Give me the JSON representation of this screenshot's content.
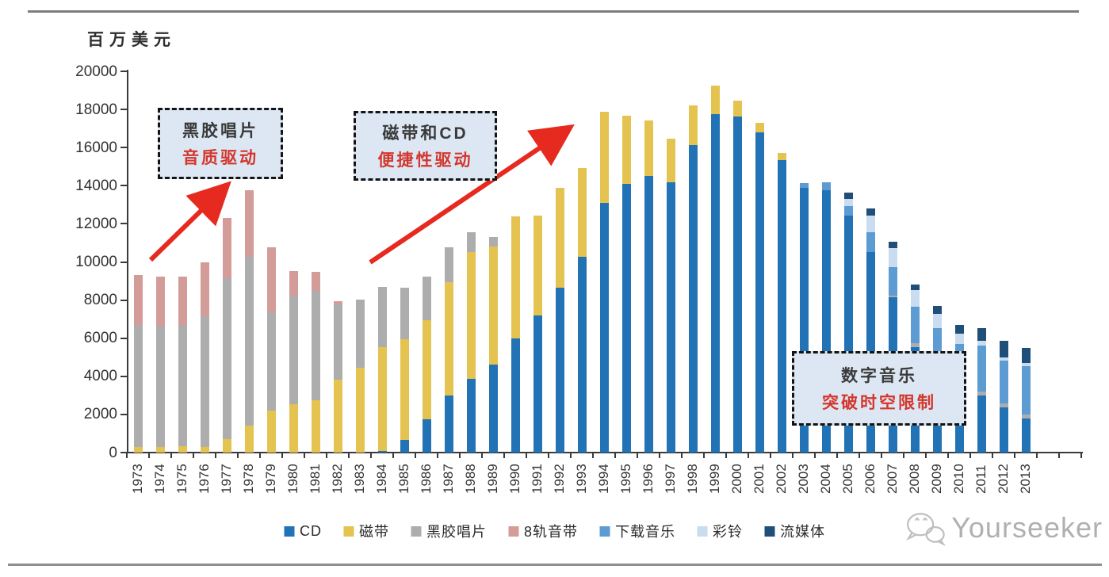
{
  "page": {
    "watermark_text": "Yourseeker"
  },
  "annotations": [
    {
      "title": "黑胶唱片",
      "subtitle": "音质驱动"
    },
    {
      "title": "磁带和CD",
      "subtitle": "便捷性驱动"
    },
    {
      "title": "数字音乐",
      "subtitle": "突破时空限制"
    }
  ],
  "chart_data": {
    "type": "bar",
    "stacked": true,
    "title": "",
    "unit_label": "百万美元",
    "xlabel": "",
    "ylabel": "百万美元",
    "ylim": [
      0,
      20000
    ],
    "ytick_labels": [
      "0",
      "2000",
      "4000",
      "6000",
      "8000",
      "10000",
      "12000",
      "14000",
      "16000",
      "18000",
      "20000"
    ],
    "grid": false,
    "legend_position": "bottom",
    "categories": [
      1973,
      1974,
      1975,
      1976,
      1977,
      1978,
      1979,
      1980,
      1981,
      1982,
      1983,
      1984,
      1985,
      1986,
      1987,
      1988,
      1989,
      1990,
      1991,
      1992,
      1993,
      1994,
      1995,
      1996,
      1997,
      1998,
      1999,
      2000,
      2001,
      2002,
      2003,
      2004,
      2005,
      2006,
      2007,
      2008,
      2009,
      2010,
      2011,
      2012,
      2013
    ],
    "series": [
      {
        "name": "CD",
        "color": "#2273b6",
        "values": [
          0,
          0,
          0,
          0,
          0,
          0,
          0,
          0,
          0,
          0,
          0,
          100,
          670,
          1750,
          3000,
          3880,
          4630,
          6000,
          7210,
          8630,
          10290,
          13080,
          14080,
          14500,
          14170,
          16130,
          17750,
          17630,
          16790,
          15340,
          13900,
          13750,
          12420,
          10540,
          8130,
          5540,
          4170,
          3390,
          3000,
          2380,
          1790
        ]
      },
      {
        "name": "磁带",
        "color": "#e4c351",
        "values": [
          300,
          300,
          320,
          290,
          710,
          1420,
          2210,
          2540,
          2750,
          3830,
          4460,
          5440,
          5290,
          5210,
          5920,
          6660,
          6200,
          6380,
          5210,
          5250,
          4630,
          4800,
          3590,
          2920,
          2290,
          2080,
          1500,
          830,
          500,
          370,
          0,
          0,
          0,
          0,
          0,
          0,
          0,
          0,
          0,
          0,
          0
        ]
      },
      {
        "name": "黑胶唱片",
        "color": "#adadad",
        "values": [
          6400,
          6370,
          6390,
          6880,
          8420,
          8870,
          5170,
          5710,
          5750,
          3960,
          3580,
          3170,
          2670,
          2250,
          1830,
          1000,
          460,
          0,
          0,
          0,
          0,
          0,
          0,
          0,
          0,
          0,
          0,
          0,
          0,
          0,
          0,
          0,
          0,
          0,
          120,
          210,
          180,
          170,
          210,
          200,
          210
        ]
      },
      {
        "name": "8轨音带",
        "color": "#d49c99",
        "values": [
          2630,
          2540,
          2500,
          2790,
          3160,
          3460,
          3410,
          1290,
          960,
          170,
          0,
          0,
          0,
          0,
          0,
          0,
          0,
          0,
          0,
          0,
          0,
          0,
          0,
          0,
          0,
          0,
          0,
          0,
          0,
          0,
          0,
          0,
          0,
          0,
          0,
          0,
          0,
          0,
          0,
          0,
          0
        ]
      },
      {
        "name": "下载音乐",
        "color": "#5d9bd3",
        "values": [
          0,
          0,
          0,
          0,
          0,
          0,
          0,
          0,
          0,
          0,
          0,
          0,
          0,
          0,
          0,
          0,
          0,
          0,
          0,
          0,
          0,
          0,
          0,
          0,
          0,
          0,
          0,
          0,
          0,
          0,
          230,
          420,
          500,
          1000,
          1460,
          1880,
          2190,
          2150,
          2420,
          2250,
          2540
        ]
      },
      {
        "name": "彩铃",
        "color": "#c9dcf0",
        "values": [
          0,
          0,
          0,
          0,
          0,
          0,
          0,
          0,
          0,
          0,
          0,
          0,
          0,
          0,
          0,
          0,
          0,
          0,
          0,
          0,
          0,
          0,
          0,
          0,
          0,
          0,
          0,
          0,
          0,
          0,
          0,
          0,
          380,
          880,
          1000,
          910,
          750,
          540,
          250,
          170,
          170
        ]
      },
      {
        "name": "流媒体",
        "color": "#1f4e79",
        "values": [
          0,
          0,
          0,
          0,
          0,
          0,
          0,
          0,
          0,
          0,
          0,
          0,
          0,
          0,
          0,
          0,
          0,
          0,
          0,
          0,
          0,
          0,
          0,
          0,
          0,
          0,
          0,
          0,
          0,
          0,
          0,
          0,
          330,
          370,
          370,
          270,
          420,
          460,
          660,
          880,
          790
        ]
      }
    ]
  }
}
